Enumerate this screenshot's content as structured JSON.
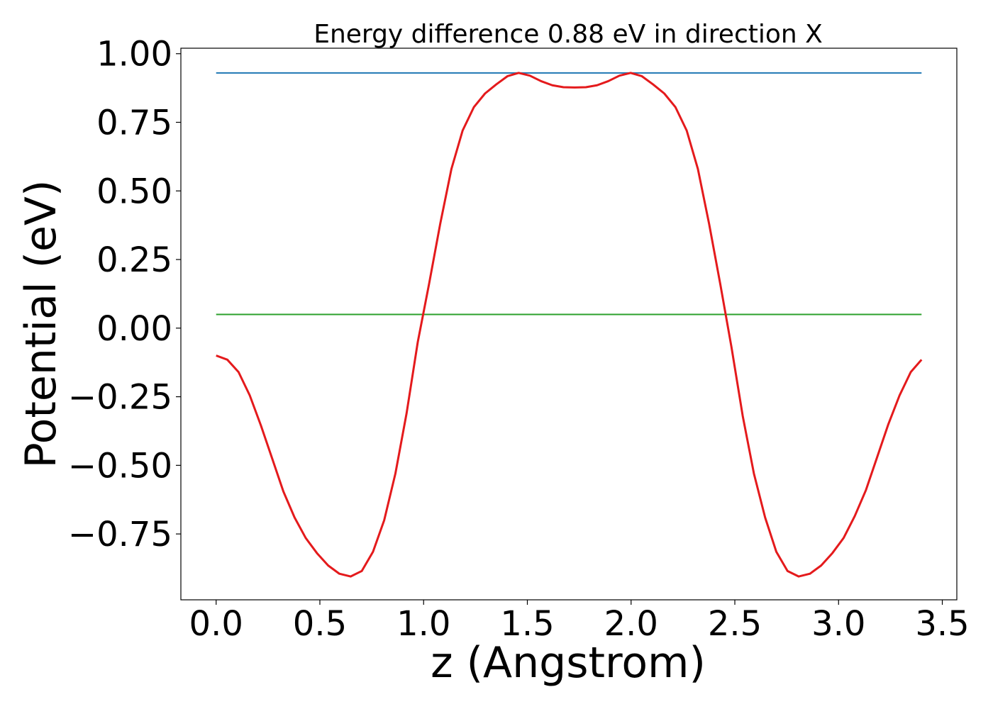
{
  "chart_data": {
    "type": "line",
    "title": "Energy difference 0.88 eV in direction X",
    "xlabel": "z (Angstrom)",
    "ylabel": "Potential (eV)",
    "xlim": [
      -0.17,
      3.57
    ],
    "ylim": [
      -0.99,
      1.02
    ],
    "xticks": [
      0.0,
      0.5,
      1.0,
      1.5,
      2.0,
      2.5,
      3.0,
      3.5
    ],
    "xtick_labels": [
      "0.0",
      "0.5",
      "1.0",
      "1.5",
      "2.0",
      "2.5",
      "3.0",
      "3.5"
    ],
    "yticks": [
      1.0,
      0.75,
      0.5,
      0.25,
      0.0,
      -0.25,
      -0.5,
      -0.75
    ],
    "ytick_labels": [
      "1.00",
      "0.75",
      "0.50",
      "0.25",
      "0.00",
      "−0.25",
      "−0.50",
      "−0.75"
    ],
    "grid": false,
    "series": [
      {
        "color": "#1f77b4",
        "x": [
          0.0,
          3.4
        ],
        "y": [
          0.93,
          0.93
        ]
      },
      {
        "color": "#2ca02c",
        "x": [
          0.0,
          3.4
        ],
        "y": [
          0.05,
          0.05
        ]
      },
      {
        "color": "#e41a1c",
        "x": [
          0.0,
          0.054,
          0.108,
          0.162,
          0.216,
          0.27,
          0.324,
          0.378,
          0.432,
          0.486,
          0.54,
          0.594,
          0.648,
          0.702,
          0.756,
          0.81,
          0.864,
          0.918,
          0.972,
          1.026,
          1.08,
          1.134,
          1.188,
          1.242,
          1.296,
          1.35,
          1.404,
          1.458,
          1.512,
          1.566,
          1.62,
          1.674,
          1.728,
          1.782,
          1.836,
          1.89,
          1.944,
          1.998,
          2.052,
          2.106,
          2.16,
          2.214,
          2.268,
          2.322,
          2.376,
          2.43,
          2.484,
          2.538,
          2.592,
          2.646,
          2.7,
          2.754,
          2.808,
          2.862,
          2.916,
          2.97,
          3.024,
          3.078,
          3.132,
          3.186,
          3.24,
          3.294,
          3.348,
          3.4
        ],
        "y": [
          -0.1,
          -0.115,
          -0.16,
          -0.245,
          -0.355,
          -0.475,
          -0.595,
          -0.69,
          -0.765,
          -0.82,
          -0.865,
          -0.895,
          -0.905,
          -0.885,
          -0.815,
          -0.7,
          -0.53,
          -0.31,
          -0.05,
          0.16,
          0.38,
          0.58,
          0.72,
          0.805,
          0.855,
          0.888,
          0.918,
          0.93,
          0.92,
          0.9,
          0.885,
          0.878,
          0.877,
          0.878,
          0.885,
          0.9,
          0.92,
          0.93,
          0.918,
          0.888,
          0.855,
          0.805,
          0.72,
          0.58,
          0.38,
          0.16,
          -0.07,
          -0.32,
          -0.53,
          -0.69,
          -0.815,
          -0.885,
          -0.905,
          -0.895,
          -0.865,
          -0.82,
          -0.765,
          -0.685,
          -0.59,
          -0.47,
          -0.35,
          -0.245,
          -0.16,
          -0.115
        ]
      }
    ]
  }
}
